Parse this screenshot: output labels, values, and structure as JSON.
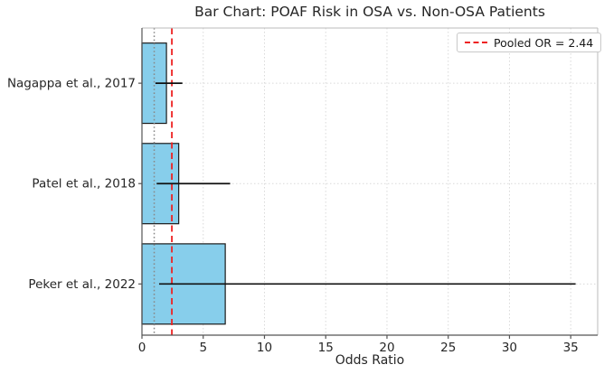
{
  "title": "Bar Chart: POAF Risk in OSA vs. Non-OSA Patients",
  "legend": {
    "label": "Pooled OR = 2.44",
    "position": "upper right"
  },
  "colors": {
    "bar_fill": "#87ceeb",
    "bar_edge": "#1a1a1a",
    "error_bar": "#111111",
    "pooled_line": "#ee2222",
    "reference_line": "#888888",
    "grid": "#d9d9d9",
    "spine": "#555555",
    "spine_light": "#bbbbbb",
    "tick_text": "#262626"
  },
  "chart_data": {
    "type": "bar",
    "orientation": "horizontal",
    "title": "Bar Chart: POAF Risk in OSA vs. Non-OSA Patients",
    "xlabel": "Odds Ratio",
    "ylabel": "",
    "categories": [
      "Nagappa et al., 2017",
      "Patel et al., 2018",
      "Peker et al., 2022"
    ],
    "values": [
      2.0,
      3.0,
      6.8
    ],
    "error_bars": {
      "low": [
        1.1,
        1.2,
        1.4
      ],
      "high": [
        3.3,
        7.2,
        35.4
      ]
    },
    "reference_lines": [
      {
        "name": "pooled-or",
        "value": 2.44,
        "label": "Pooled OR = 2.44",
        "style": "dashed",
        "color": "#ee2222"
      },
      {
        "name": "or-equals-1",
        "value": 1.0,
        "label": "",
        "style": "dotted",
        "color": "#888888"
      }
    ],
    "xticks": [
      0,
      5,
      10,
      15,
      20,
      25,
      30,
      35
    ],
    "xlim": [
      0,
      37.2
    ],
    "grid": true,
    "legend_position": "upper right",
    "bar_height_fraction": 0.8
  }
}
